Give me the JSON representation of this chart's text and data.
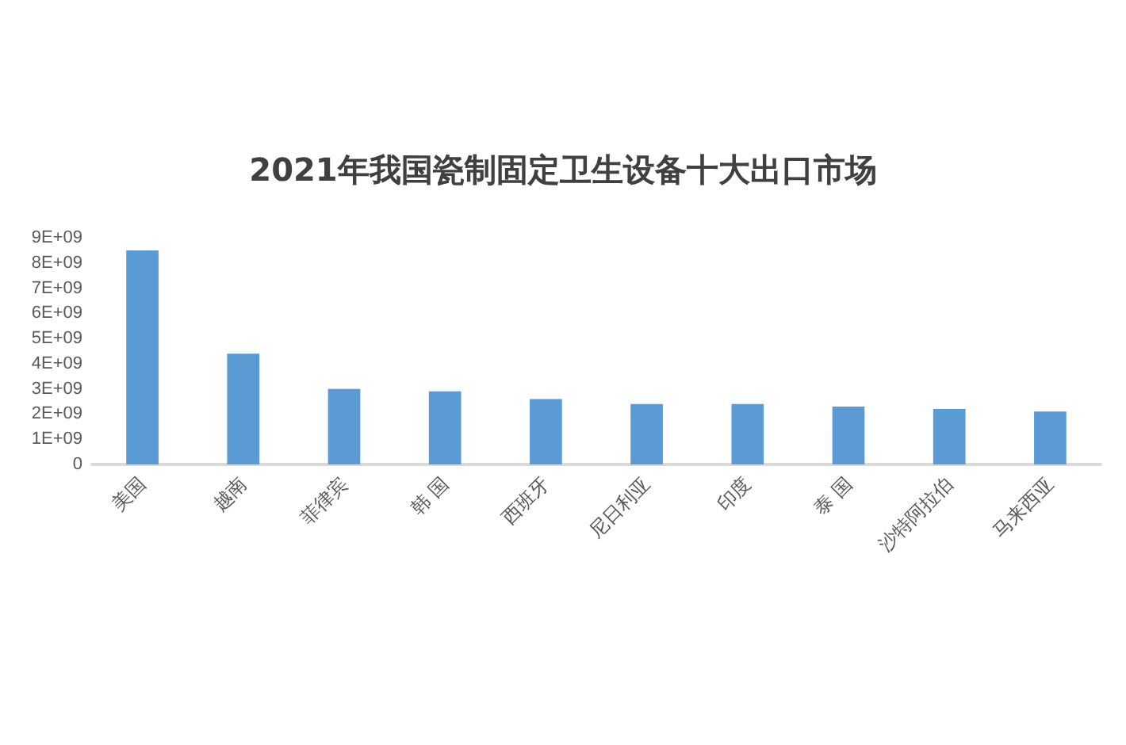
{
  "chart_data": {
    "type": "bar",
    "title": "2021年我国瓷制固定卫生设备十大出口市场",
    "categories": [
      "美国",
      "越南",
      "菲律宾",
      "韩 国",
      "西班牙",
      "尼日利亚",
      "印度",
      "泰 国",
      "沙特阿拉伯",
      "马来西亚"
    ],
    "values": [
      8500000000,
      4400000000,
      3000000000,
      2900000000,
      2600000000,
      2400000000,
      2400000000,
      2300000000,
      2200000000,
      2100000000
    ],
    "color": "#5b9bd5",
    "ylim": [
      0,
      9000000000
    ],
    "yticks": [
      {
        "value": 0,
        "label": "0"
      },
      {
        "value": 1000000000,
        "label": "1E+09"
      },
      {
        "value": 2000000000,
        "label": "2E+09"
      },
      {
        "value": 3000000000,
        "label": "3E+09"
      },
      {
        "value": 4000000000,
        "label": "4E+09"
      },
      {
        "value": 5000000000,
        "label": "5E+09"
      },
      {
        "value": 6000000000,
        "label": "6E+09"
      },
      {
        "value": 7000000000,
        "label": "7E+09"
      },
      {
        "value": 8000000000,
        "label": "8E+09"
      },
      {
        "value": 9000000000,
        "label": "9E+09"
      }
    ],
    "grid": false
  }
}
